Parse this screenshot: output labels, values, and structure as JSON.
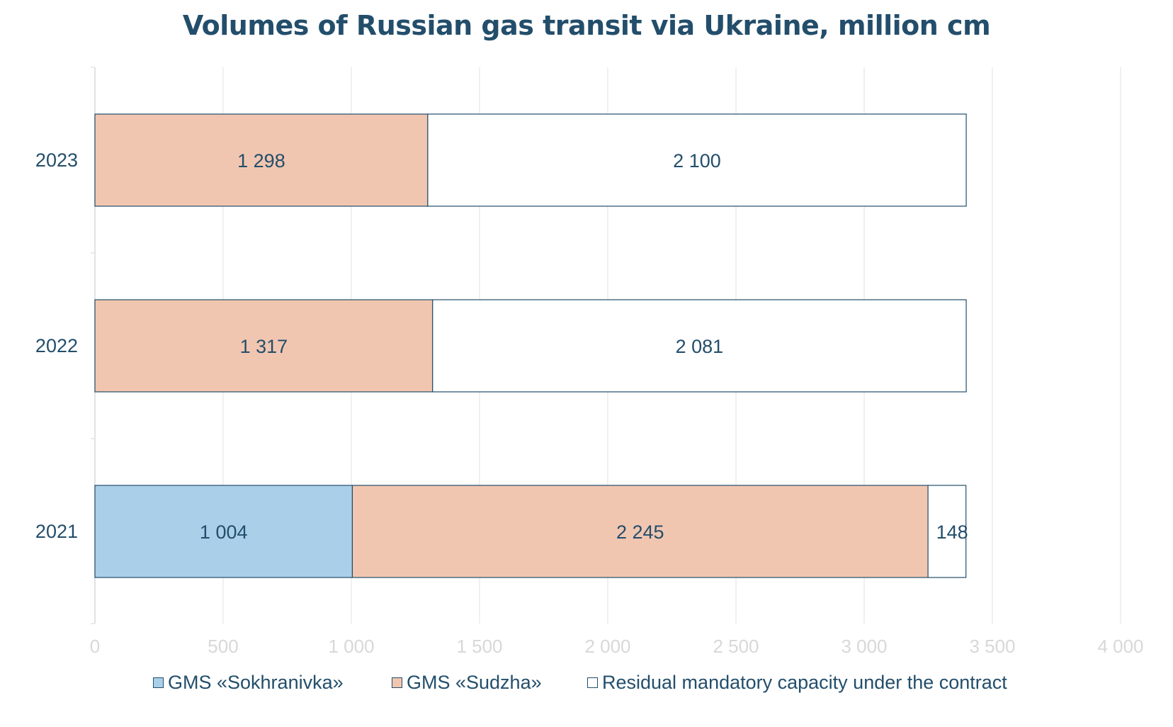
{
  "chart_data": {
    "type": "bar",
    "orientation": "horizontal",
    "stacked": true,
    "title": "Volumes of Russian gas transit via Ukraine, million cm",
    "categories": [
      "2023",
      "2022",
      "2021"
    ],
    "series": [
      {
        "name": "GMS «Sokhranivka»",
        "color": "#a9cfe9",
        "values": [
          0,
          0,
          1004
        ],
        "labels": [
          "",
          "",
          "1 004"
        ]
      },
      {
        "name": "GMS «Sudzha»",
        "color": "#f1c6b0",
        "values": [
          1298,
          1317,
          2245
        ],
        "labels": [
          "1 298",
          "1 317",
          "2 245"
        ]
      },
      {
        "name": "Residual mandatory capacity under the contract",
        "color": "#ffffff",
        "values": [
          2100,
          2081,
          148
        ],
        "labels": [
          "2 100",
          "2 081",
          "148"
        ]
      }
    ],
    "xlim": [
      0,
      4000
    ],
    "xticks": [
      0,
      500,
      1000,
      1500,
      2000,
      2500,
      3000,
      3500,
      4000
    ],
    "xtick_labels": [
      "0",
      "500",
      "1 000",
      "1 500",
      "2 000",
      "2 500",
      "3 000",
      "3 500",
      "4 000"
    ],
    "grid": true,
    "legend_position": "bottom",
    "border_color": "#234e6b",
    "text_color": "#234e6b"
  }
}
